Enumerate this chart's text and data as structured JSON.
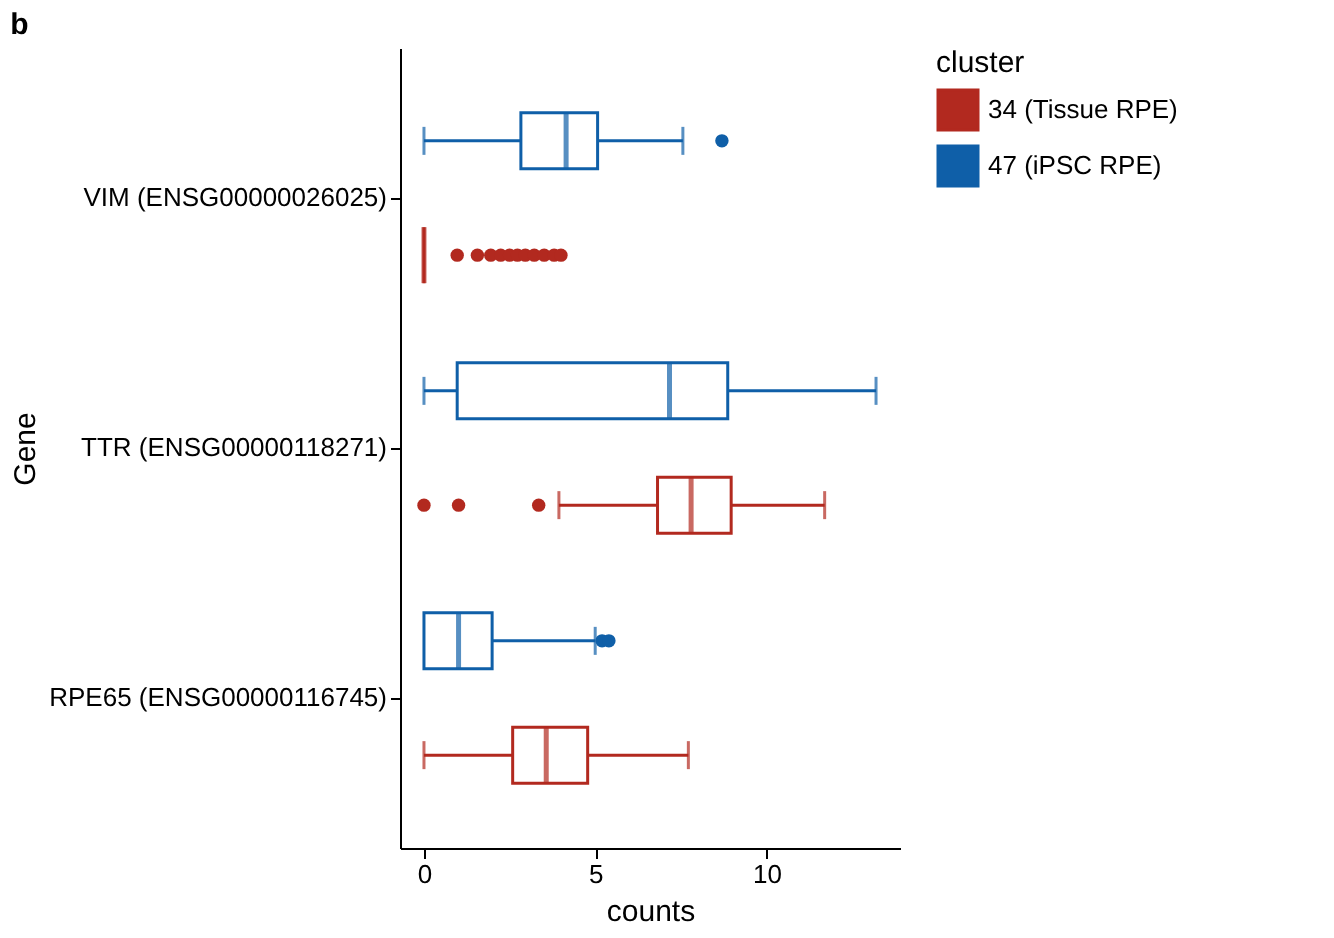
{
  "chart_data": {
    "type": "box",
    "orientation": "horizontal",
    "title": "b",
    "xlabel": "counts",
    "ylabel": "Gene",
    "legend_title": "cluster",
    "legend": "right",
    "grid": false,
    "categories": [
      "VIM (ENSG00000026025)",
      "TTR (ENSG00000118271)",
      "RPE65 (ENSG00000116745)"
    ],
    "xlim": [
      -0.7,
      13.9
    ],
    "xticks": [
      0,
      5,
      10
    ],
    "series": [
      {
        "name": "34 (Tissue RPE)",
        "color": "#b2291f",
        "boxes": [
          {
            "low": 0,
            "q1": 0,
            "median": 0,
            "q3": 0,
            "high": 0,
            "outliers": [
              0.97,
              1.56,
              1.95,
              2.24,
              2.5,
              2.73,
              2.96,
              3.22,
              3.51,
              3.8,
              4.0
            ]
          },
          {
            "low": 3.94,
            "q1": 6.82,
            "median": 7.8,
            "q3": 8.97,
            "high": 11.7,
            "outliers": [
              0,
              1.01,
              3.35
            ]
          },
          {
            "low": 0,
            "q1": 2.59,
            "median": 3.57,
            "q3": 4.78,
            "high": 7.72
          }
        ]
      },
      {
        "name": "47 (iPSC RPE)",
        "color": "#0f5fa8",
        "boxes": [
          {
            "low": 0,
            "q1": 2.83,
            "median": 4.15,
            "q3": 5.07,
            "high": 7.56,
            "outliers": [
              8.7
            ]
          },
          {
            "low": 0,
            "q1": 0.97,
            "median": 7.17,
            "q3": 8.87,
            "high": 13.2
          },
          {
            "low": 0,
            "q1": 0,
            "median": 1.01,
            "q3": 1.99,
            "high": 5.0,
            "outliers": [
              5.2,
              5.4
            ]
          }
        ]
      }
    ]
  }
}
